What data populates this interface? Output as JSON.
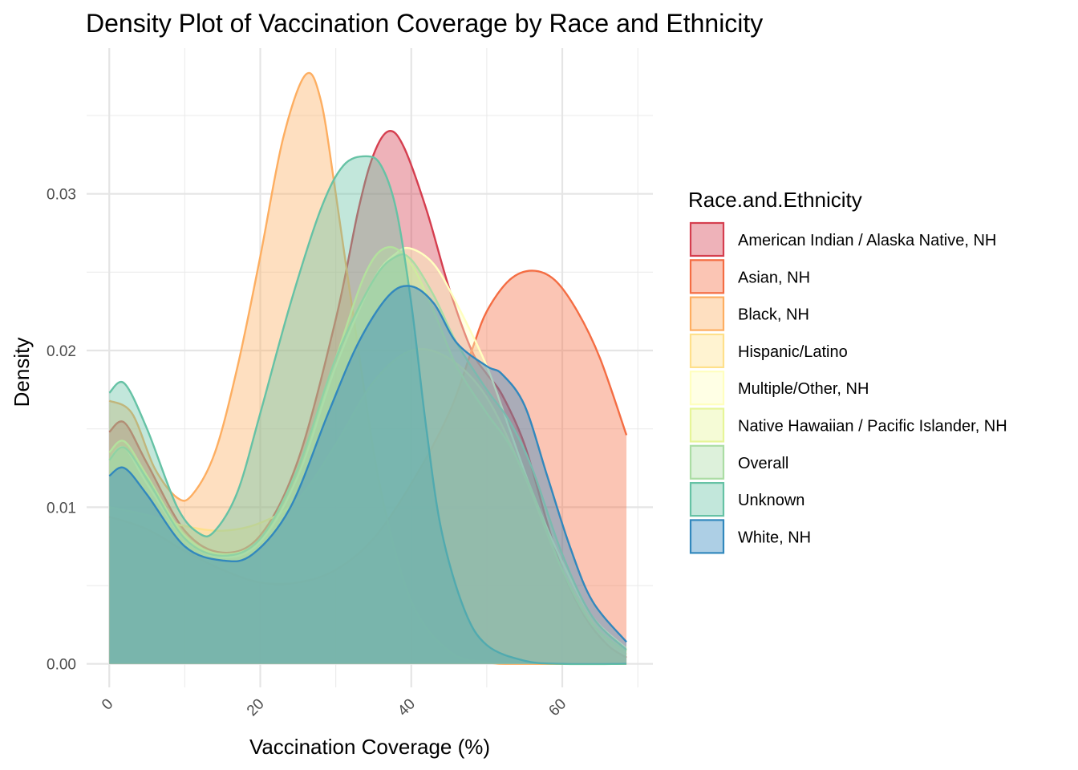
{
  "chart_data": {
    "type": "area",
    "subtype": "density",
    "title": "Density Plot of Vaccination Coverage by Race and Ethnicity",
    "xlabel": "Vaccination Coverage (%)",
    "ylabel": "Density",
    "xlim": [
      -3,
      72
    ],
    "ylim": [
      -0.0015,
      0.0393
    ],
    "x_ticks": [
      0,
      20,
      40,
      60
    ],
    "x_tick_labels": [
      "0",
      "20",
      "40",
      "60"
    ],
    "y_ticks": [
      0.0,
      0.01,
      0.02,
      0.03
    ],
    "y_tick_labels": [
      "0.00",
      "0.01",
      "0.02",
      "0.03"
    ],
    "grid": true,
    "legend_title": "Race.and.Ethnicity",
    "legend_position": "right",
    "fill_opacity": 0.4,
    "series": [
      {
        "name": "American Indian / Alaska Native, NH",
        "color": "#D53E4F",
        "points": [
          [
            0,
            0.0148
          ],
          [
            2,
            0.0154
          ],
          [
            5,
            0.0128
          ],
          [
            10,
            0.0085
          ],
          [
            15,
            0.0071
          ],
          [
            20,
            0.0082
          ],
          [
            25,
            0.013
          ],
          [
            30,
            0.022
          ],
          [
            33,
            0.029
          ],
          [
            35,
            0.0325
          ],
          [
            37,
            0.034
          ],
          [
            39,
            0.033
          ],
          [
            42,
            0.029
          ],
          [
            45,
            0.024
          ],
          [
            48,
            0.02
          ],
          [
            50,
            0.0185
          ],
          [
            52,
            0.0172
          ],
          [
            55,
            0.014
          ],
          [
            58,
            0.009
          ],
          [
            60,
            0.006
          ],
          [
            63,
            0.003
          ],
          [
            66,
            0.0012
          ],
          [
            68.5,
            0.0004
          ]
        ]
      },
      {
        "name": "Asian, NH",
        "color": "#F46D43",
        "points": [
          [
            0,
            0.0094
          ],
          [
            5,
            0.0086
          ],
          [
            10,
            0.0072
          ],
          [
            15,
            0.006
          ],
          [
            20,
            0.0052
          ],
          [
            25,
            0.0052
          ],
          [
            30,
            0.006
          ],
          [
            35,
            0.008
          ],
          [
            40,
            0.0115
          ],
          [
            45,
            0.016
          ],
          [
            48,
            0.02
          ],
          [
            50,
            0.0225
          ],
          [
            53,
            0.0245
          ],
          [
            56,
            0.0251
          ],
          [
            59,
            0.0245
          ],
          [
            62,
            0.0225
          ],
          [
            65,
            0.0195
          ],
          [
            68.5,
            0.0146
          ]
        ]
      },
      {
        "name": "Black, NH",
        "color": "#FDAE61",
        "points": [
          [
            0,
            0.0168
          ],
          [
            3,
            0.016
          ],
          [
            6,
            0.0125
          ],
          [
            9,
            0.0106
          ],
          [
            11,
            0.0108
          ],
          [
            14,
            0.0135
          ],
          [
            17,
            0.019
          ],
          [
            20,
            0.026
          ],
          [
            23,
            0.0335
          ],
          [
            26,
            0.0376
          ],
          [
            28,
            0.036
          ],
          [
            30,
            0.03
          ],
          [
            33,
            0.02
          ],
          [
            36,
            0.011
          ],
          [
            40,
            0.004
          ],
          [
            45,
            0.0008
          ],
          [
            50,
            0.0001
          ],
          [
            55,
            0.0
          ],
          [
            68.5,
            0.0
          ]
        ]
      },
      {
        "name": "Hispanic/Latino",
        "color": "#FEE08B",
        "points": [
          [
            0,
            0.01
          ],
          [
            5,
            0.0095
          ],
          [
            10,
            0.0088
          ],
          [
            15,
            0.0085
          ],
          [
            20,
            0.009
          ],
          [
            25,
            0.0105
          ],
          [
            30,
            0.014
          ],
          [
            35,
            0.018
          ],
          [
            40,
            0.02
          ],
          [
            45,
            0.0195
          ],
          [
            50,
            0.017
          ],
          [
            55,
            0.012
          ],
          [
            60,
            0.006
          ],
          [
            65,
            0.002
          ],
          [
            68.5,
            0.0006
          ]
        ]
      },
      {
        "name": "Multiple/Other, NH",
        "color": "#FFFFBF",
        "points": [
          [
            0,
            0.013
          ],
          [
            2,
            0.0138
          ],
          [
            5,
            0.0115
          ],
          [
            10,
            0.008
          ],
          [
            15,
            0.0068
          ],
          [
            20,
            0.0078
          ],
          [
            25,
            0.012
          ],
          [
            30,
            0.019
          ],
          [
            35,
            0.0245
          ],
          [
            38,
            0.0262
          ],
          [
            40,
            0.0265
          ],
          [
            43,
            0.0255
          ],
          [
            46,
            0.023
          ],
          [
            50,
            0.019
          ],
          [
            53,
            0.015
          ],
          [
            56,
            0.011
          ],
          [
            60,
            0.0065
          ],
          [
            64,
            0.003
          ],
          [
            68.5,
            0.001
          ]
        ]
      },
      {
        "name": "Native Hawaiian / Pacific Islander, NH",
        "color": "#E6F598",
        "points": [
          [
            0,
            0.0135
          ],
          [
            2,
            0.0142
          ],
          [
            5,
            0.012
          ],
          [
            10,
            0.0082
          ],
          [
            15,
            0.007
          ],
          [
            20,
            0.008
          ],
          [
            25,
            0.0125
          ],
          [
            30,
            0.0195
          ],
          [
            34,
            0.025
          ],
          [
            37,
            0.0266
          ],
          [
            40,
            0.0255
          ],
          [
            43,
            0.0225
          ],
          [
            46,
            0.019
          ],
          [
            50,
            0.016
          ],
          [
            53,
            0.014
          ],
          [
            56,
            0.011
          ],
          [
            60,
            0.006
          ],
          [
            64,
            0.0025
          ],
          [
            68.5,
            0.0008
          ]
        ]
      },
      {
        "name": "Overall",
        "color": "#ABDDA4",
        "points": [
          [
            0,
            0.013
          ],
          [
            2,
            0.0138
          ],
          [
            5,
            0.0118
          ],
          [
            10,
            0.008
          ],
          [
            15,
            0.0069
          ],
          [
            20,
            0.008
          ],
          [
            25,
            0.0125
          ],
          [
            30,
            0.0195
          ],
          [
            35,
            0.0245
          ],
          [
            38,
            0.026
          ],
          [
            40,
            0.0258
          ],
          [
            43,
            0.0235
          ],
          [
            46,
            0.0205
          ],
          [
            50,
            0.0175
          ],
          [
            53,
            0.0155
          ],
          [
            56,
            0.0125
          ],
          [
            60,
            0.007
          ],
          [
            64,
            0.003
          ],
          [
            68.5,
            0.0009
          ]
        ]
      },
      {
        "name": "Unknown",
        "color": "#66C2A5",
        "points": [
          [
            0,
            0.0173
          ],
          [
            2,
            0.0179
          ],
          [
            5,
            0.015
          ],
          [
            9,
            0.01
          ],
          [
            12,
            0.0083
          ],
          [
            14,
            0.0085
          ],
          [
            17,
            0.011
          ],
          [
            20,
            0.016
          ],
          [
            24,
            0.023
          ],
          [
            28,
            0.029
          ],
          [
            31,
            0.0318
          ],
          [
            34,
            0.0324
          ],
          [
            36,
            0.0318
          ],
          [
            38,
            0.029
          ],
          [
            40,
            0.023
          ],
          [
            42,
            0.015
          ],
          [
            44,
            0.0085
          ],
          [
            47,
            0.0035
          ],
          [
            50,
            0.0012
          ],
          [
            55,
            0.0002
          ],
          [
            60,
            0.0
          ],
          [
            68.5,
            0.0
          ]
        ]
      },
      {
        "name": "White, NH",
        "color": "#3288BD",
        "points": [
          [
            0,
            0.012
          ],
          [
            2,
            0.0125
          ],
          [
            5,
            0.0108
          ],
          [
            10,
            0.0075
          ],
          [
            15,
            0.0066
          ],
          [
            19,
            0.007
          ],
          [
            24,
            0.01
          ],
          [
            29,
            0.016
          ],
          [
            33,
            0.0205
          ],
          [
            37,
            0.0235
          ],
          [
            40,
            0.0241
          ],
          [
            43,
            0.023
          ],
          [
            46,
            0.0205
          ],
          [
            50,
            0.019
          ],
          [
            52,
            0.0185
          ],
          [
            55,
            0.0165
          ],
          [
            58,
            0.012
          ],
          [
            61,
            0.0075
          ],
          [
            64,
            0.004
          ],
          [
            68.5,
            0.0014
          ]
        ]
      }
    ]
  }
}
